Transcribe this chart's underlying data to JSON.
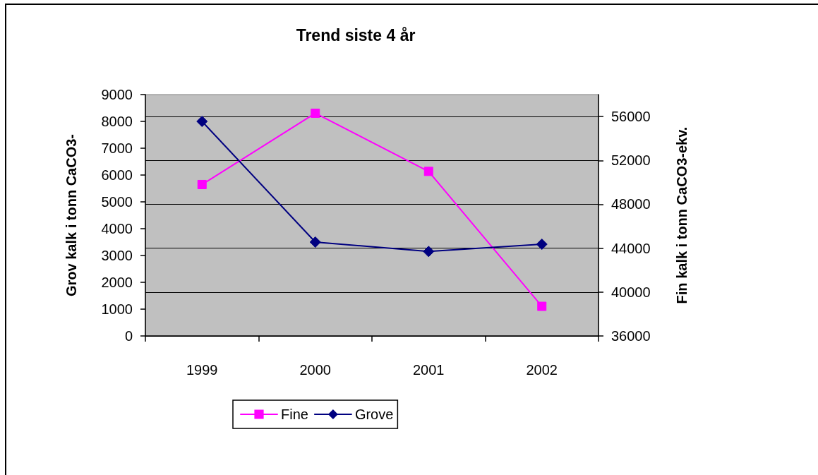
{
  "chart_data": {
    "type": "line",
    "title": "Trend siste 4 år",
    "ylabel": "Grov kalk i tonn CaCO3-",
    "y2label": "Fin kalk i tonn CaCO3-ekv.",
    "categories": [
      "1999",
      "2000",
      "2001",
      "2002"
    ],
    "series": [
      {
        "name": "Fine",
        "color": "#ff00ff",
        "marker": "square",
        "axis": "y2",
        "values": [
          49800,
          56300,
          51000,
          38700
        ]
      },
      {
        "name": "Grove",
        "color": "#000080",
        "marker": "diamond",
        "values": [
          8000,
          3500,
          3150,
          3420
        ]
      }
    ],
    "ylim": [
      0,
      9000
    ],
    "yticks": [
      0,
      1000,
      2000,
      3000,
      4000,
      5000,
      6000,
      7000,
      8000,
      9000
    ],
    "y2lim": [
      36000,
      58000
    ],
    "y2ticks": [
      36000,
      40000,
      44000,
      48000,
      52000,
      56000
    ],
    "grid": "y2",
    "legend": "bottom",
    "line_style": "solid"
  }
}
